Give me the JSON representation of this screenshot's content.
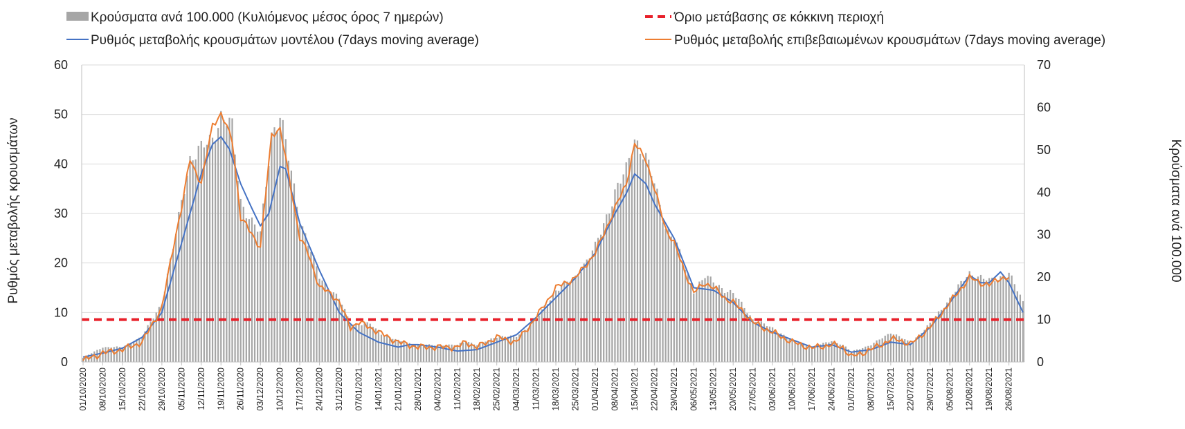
{
  "chart_data": {
    "type": "bar",
    "xlabel": "",
    "ylabel": "Ρυθμός μεταβολής κρουσμάτων",
    "y2label": "Κρούσματα ανά 100.000",
    "ylim": [
      0,
      60
    ],
    "y2lim": [
      0,
      70
    ],
    "yticks": [
      0,
      10,
      20,
      30,
      40,
      50,
      60
    ],
    "y2ticks": [
      0,
      10,
      20,
      30,
      40,
      50,
      60,
      70
    ],
    "grid": "horizontal",
    "legend_position": "top",
    "x_start_date": "01/10/2020",
    "x_end_date": "31/08/2021",
    "x_tick_labels": [
      "01/10/2020",
      "08/10/2020",
      "15/10/2020",
      "22/10/2020",
      "29/10/2020",
      "05/11/2020",
      "12/11/2020",
      "19/11/2020",
      "26/11/2020",
      "03/12/2020",
      "10/12/2020",
      "17/12/2020",
      "24/12/2020",
      "31/12/2020",
      "07/01/2021",
      "14/01/2021",
      "21/01/2021",
      "28/01/2021",
      "04/02/2021",
      "11/02/2021",
      "18/02/2021",
      "25/02/2021",
      "04/03/2021",
      "11/03/2021",
      "18/03/2021",
      "25/03/2021",
      "01/04/2021",
      "08/04/2021",
      "15/04/2021",
      "22/04/2021",
      "29/04/2021",
      "06/05/2021",
      "13/05/2021",
      "20/05/2021",
      "27/05/2021",
      "03/06/2021",
      "10/06/2021",
      "17/06/2021",
      "24/06/2021",
      "01/07/2021",
      "08/07/2021",
      "15/07/2021",
      "22/07/2021",
      "29/07/2021",
      "05/08/2021",
      "12/08/2021",
      "19/08/2021",
      "26/08/2021"
    ],
    "series": [
      {
        "name": "Κρούσματα ανά 100.000 (Κυλιόμενος μέσος όρος 7 ημερών)",
        "type": "bar",
        "axis": "right",
        "color": "#a6a6a6",
        "points": [
          [
            "01/10/2020",
            1
          ],
          [
            "08/10/2020",
            3.5
          ],
          [
            "15/10/2020",
            3.5
          ],
          [
            "22/10/2020",
            6
          ],
          [
            "29/10/2020",
            14
          ],
          [
            "03/11/2020",
            30
          ],
          [
            "05/11/2020",
            38
          ],
          [
            "08/11/2020",
            48
          ],
          [
            "12/11/2020",
            50
          ],
          [
            "16/11/2020",
            53
          ],
          [
            "19/11/2020",
            58
          ],
          [
            "23/11/2020",
            55
          ],
          [
            "26/11/2020",
            38
          ],
          [
            "30/11/2020",
            33
          ],
          [
            "03/12/2020",
            30
          ],
          [
            "07/12/2020",
            54
          ],
          [
            "10/12/2020",
            58
          ],
          [
            "13/12/2020",
            48
          ],
          [
            "17/12/2020",
            34
          ],
          [
            "20/12/2020",
            28
          ],
          [
            "24/12/2020",
            20
          ],
          [
            "28/12/2020",
            17
          ],
          [
            "31/12/2020",
            15
          ],
          [
            "04/01/2021",
            9
          ],
          [
            "07/01/2021",
            9
          ],
          [
            "11/01/2021",
            9
          ],
          [
            "14/01/2021",
            7
          ],
          [
            "21/01/2021",
            5
          ],
          [
            "28/01/2021",
            4
          ],
          [
            "04/02/2021",
            4
          ],
          [
            "11/02/2021",
            4
          ],
          [
            "14/02/2021",
            5
          ],
          [
            "18/02/2021",
            4
          ],
          [
            "25/02/2021",
            6
          ],
          [
            "04/03/2021",
            6
          ],
          [
            "11/03/2021",
            10
          ],
          [
            "18/03/2021",
            17
          ],
          [
            "25/03/2021",
            20
          ],
          [
            "01/04/2021",
            27
          ],
          [
            "08/04/2021",
            40
          ],
          [
            "12/04/2021",
            45
          ],
          [
            "15/04/2021",
            53
          ],
          [
            "19/04/2021",
            48
          ],
          [
            "22/04/2021",
            42
          ],
          [
            "26/04/2021",
            32
          ],
          [
            "29/04/2021",
            29
          ],
          [
            "03/05/2021",
            22
          ],
          [
            "06/05/2021",
            17
          ],
          [
            "10/05/2021",
            20
          ],
          [
            "13/05/2021",
            19
          ],
          [
            "17/05/2021",
            17
          ],
          [
            "20/05/2021",
            16
          ],
          [
            "24/05/2021",
            13
          ],
          [
            "27/05/2021",
            10
          ],
          [
            "03/06/2021",
            8
          ],
          [
            "10/06/2021",
            5
          ],
          [
            "17/06/2021",
            3.5
          ],
          [
            "24/06/2021",
            5
          ],
          [
            "28/06/2021",
            4
          ],
          [
            "01/07/2021",
            2.5
          ],
          [
            "08/07/2021",
            4
          ],
          [
            "15/07/2021",
            7
          ],
          [
            "18/07/2021",
            6
          ],
          [
            "22/07/2021",
            4.5
          ],
          [
            "29/07/2021",
            9
          ],
          [
            "05/08/2021",
            15
          ],
          [
            "12/08/2021",
            21
          ],
          [
            "16/08/2021",
            20
          ],
          [
            "19/08/2021",
            19
          ],
          [
            "23/08/2021",
            20
          ],
          [
            "26/08/2021",
            21
          ],
          [
            "31/08/2021",
            14
          ]
        ]
      },
      {
        "name": "Όριο μετάβασης σε κόκκινη περιοχή",
        "type": "line",
        "style": "dashed",
        "axis": "right",
        "color": "#e8202a",
        "value": 10
      },
      {
        "name": "Ρυθμός μεταβολής κρουσμάτων μοντέλου (7days moving average)",
        "type": "line",
        "axis": "left",
        "color": "#4472c4",
        "points": [
          [
            "01/10/2020",
            1
          ],
          [
            "08/10/2020",
            1.8
          ],
          [
            "15/10/2020",
            2.8
          ],
          [
            "22/10/2020",
            5
          ],
          [
            "29/10/2020",
            10
          ],
          [
            "05/11/2020",
            24
          ],
          [
            "12/11/2020",
            38
          ],
          [
            "16/11/2020",
            44
          ],
          [
            "19/11/2020",
            45.5
          ],
          [
            "22/11/2020",
            43
          ],
          [
            "26/11/2020",
            36
          ],
          [
            "30/11/2020",
            31
          ],
          [
            "03/12/2020",
            27.5
          ],
          [
            "06/12/2020",
            30
          ],
          [
            "10/12/2020",
            39.5
          ],
          [
            "12/12/2020",
            39
          ],
          [
            "17/12/2020",
            28
          ],
          [
            "24/12/2020",
            18.5
          ],
          [
            "31/12/2020",
            10
          ],
          [
            "07/01/2021",
            6
          ],
          [
            "14/01/2021",
            4
          ],
          [
            "21/01/2021",
            3
          ],
          [
            "25/01/2021",
            3.5
          ],
          [
            "28/01/2021",
            3.5
          ],
          [
            "04/02/2021",
            3
          ],
          [
            "11/02/2021",
            2.2
          ],
          [
            "18/02/2021",
            2.5
          ],
          [
            "25/02/2021",
            4
          ],
          [
            "04/03/2021",
            5.5
          ],
          [
            "11/03/2021",
            9
          ],
          [
            "18/03/2021",
            13
          ],
          [
            "25/03/2021",
            17
          ],
          [
            "01/04/2021",
            22
          ],
          [
            "08/04/2021",
            30
          ],
          [
            "12/04/2021",
            34
          ],
          [
            "15/04/2021",
            38
          ],
          [
            "19/04/2021",
            36
          ],
          [
            "22/04/2021",
            32
          ],
          [
            "29/04/2021",
            25
          ],
          [
            "06/05/2021",
            15
          ],
          [
            "13/05/2021",
            14.5
          ],
          [
            "20/05/2021",
            12
          ],
          [
            "27/05/2021",
            8
          ],
          [
            "03/06/2021",
            6
          ],
          [
            "10/06/2021",
            4.5
          ],
          [
            "17/06/2021",
            3
          ],
          [
            "24/06/2021",
            3.5
          ],
          [
            "01/07/2021",
            2
          ],
          [
            "08/07/2021",
            2.5
          ],
          [
            "15/07/2021",
            4
          ],
          [
            "22/07/2021",
            3.5
          ],
          [
            "29/07/2021",
            7
          ],
          [
            "05/08/2021",
            12
          ],
          [
            "12/08/2021",
            17.5
          ],
          [
            "16/08/2021",
            16
          ],
          [
            "19/08/2021",
            16
          ],
          [
            "23/08/2021",
            18.2
          ],
          [
            "26/08/2021",
            16
          ],
          [
            "31/08/2021",
            10
          ]
        ]
      },
      {
        "name": "Ρυθμός μεταβολής επιβεβαιωμένων κρουσμάτων (7days moving average)",
        "type": "line",
        "axis": "left",
        "color": "#ed7d31",
        "points": [
          [
            "01/10/2020",
            0.3
          ],
          [
            "08/10/2020",
            1.8
          ],
          [
            "15/10/2020",
            2.5
          ],
          [
            "22/10/2020",
            4
          ],
          [
            "29/10/2020",
            11
          ],
          [
            "03/11/2020",
            26
          ],
          [
            "05/11/2020",
            31
          ],
          [
            "08/11/2020",
            41
          ],
          [
            "12/11/2020",
            36
          ],
          [
            "16/11/2020",
            48
          ],
          [
            "19/11/2020",
            50
          ],
          [
            "23/11/2020",
            45
          ],
          [
            "26/11/2020",
            29
          ],
          [
            "30/11/2020",
            26
          ],
          [
            "03/12/2020",
            23
          ],
          [
            "07/12/2020",
            46
          ],
          [
            "10/12/2020",
            47
          ],
          [
            "13/12/2020",
            38
          ],
          [
            "17/12/2020",
            25
          ],
          [
            "20/12/2020",
            22
          ],
          [
            "24/12/2020",
            15
          ],
          [
            "28/12/2020",
            14
          ],
          [
            "31/12/2020",
            12
          ],
          [
            "04/01/2021",
            7
          ],
          [
            "07/01/2021",
            8
          ],
          [
            "11/01/2021",
            7
          ],
          [
            "14/01/2021",
            6
          ],
          [
            "21/01/2021",
            4
          ],
          [
            "28/01/2021",
            3
          ],
          [
            "04/02/2021",
            3
          ],
          [
            "11/02/2021",
            3
          ],
          [
            "14/02/2021",
            4
          ],
          [
            "18/02/2021",
            3
          ],
          [
            "25/02/2021",
            5
          ],
          [
            "04/03/2021",
            4
          ],
          [
            "11/03/2021",
            9
          ],
          [
            "18/03/2021",
            15
          ],
          [
            "25/03/2021",
            17
          ],
          [
            "01/04/2021",
            22
          ],
          [
            "08/04/2021",
            31
          ],
          [
            "12/04/2021",
            36
          ],
          [
            "15/04/2021",
            44
          ],
          [
            "19/04/2021",
            41
          ],
          [
            "22/04/2021",
            35
          ],
          [
            "26/04/2021",
            27
          ],
          [
            "29/04/2021",
            24
          ],
          [
            "03/05/2021",
            18
          ],
          [
            "06/05/2021",
            14
          ],
          [
            "10/05/2021",
            16
          ],
          [
            "13/05/2021",
            15
          ],
          [
            "17/05/2021",
            13
          ],
          [
            "20/05/2021",
            12
          ],
          [
            "24/05/2021",
            10
          ],
          [
            "27/05/2021",
            8
          ],
          [
            "03/06/2021",
            6
          ],
          [
            "10/06/2021",
            4
          ],
          [
            "17/06/2021",
            2.8
          ],
          [
            "24/06/2021",
            3.5
          ],
          [
            "28/06/2021",
            3
          ],
          [
            "01/07/2021",
            1
          ],
          [
            "08/07/2021",
            2.5
          ],
          [
            "15/07/2021",
            4.5
          ],
          [
            "18/07/2021",
            4.5
          ],
          [
            "22/07/2021",
            3.5
          ],
          [
            "29/07/2021",
            7
          ],
          [
            "05/08/2021",
            12
          ],
          [
            "12/08/2021",
            17
          ],
          [
            "16/08/2021",
            16
          ],
          [
            "19/08/2021",
            15.5
          ],
          [
            "23/08/2021",
            17
          ],
          [
            "26/08/2021",
            17
          ]
        ]
      }
    ]
  }
}
